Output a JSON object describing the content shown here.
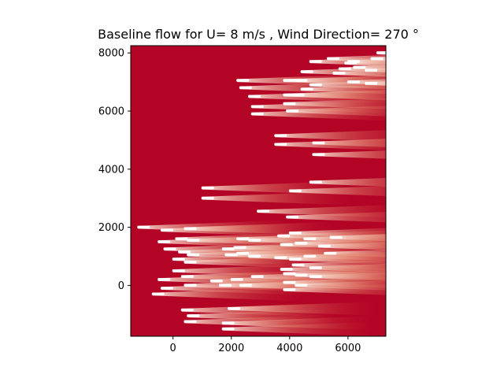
{
  "chart_data": {
    "type": "heatmap",
    "title": "Baseline flow for U= 8 m/s  ,  Wind Direction= 270  °",
    "xlabel": "",
    "ylabel": "",
    "xlim": [
      -1450,
      7300
    ],
    "ylim": [
      -1750,
      8250
    ],
    "x_ticks": [
      0,
      2000,
      4000,
      6000
    ],
    "x_tick_labels": [
      "0",
      "2000",
      "4000",
      "6000"
    ],
    "y_ticks": [
      0,
      2000,
      4000,
      6000,
      8000
    ],
    "y_tick_labels": [
      "0",
      "2000",
      "4000",
      "6000",
      "8000"
    ],
    "background_color": "#b40426",
    "wake_color": "#f4d8d0",
    "turbine_color": "#ffffff",
    "grid": false,
    "legend": "none",
    "wind_from_deg": 270,
    "turbines": [
      [
        -1200,
        2000
      ],
      [
        -400,
        1900
      ],
      [
        400,
        1950
      ],
      [
        -500,
        1500
      ],
      [
        100,
        1600
      ],
      [
        500,
        1550
      ],
      [
        -300,
        1250
      ],
      [
        200,
        1150
      ],
      [
        500,
        1050
      ],
      [
        1700,
        1250
      ],
      [
        2100,
        1300
      ],
      [
        0,
        900
      ],
      [
        400,
        800
      ],
      [
        1800,
        1050
      ],
      [
        2200,
        1100
      ],
      [
        2600,
        1000
      ],
      [
        0,
        500
      ],
      [
        300,
        300
      ],
      [
        1300,
        150
      ],
      [
        2000,
        200
      ],
      [
        2700,
        300
      ],
      [
        -500,
        200
      ],
      [
        -400,
        -100
      ],
      [
        400,
        0
      ],
      [
        1600,
        0
      ],
      [
        2300,
        0
      ],
      [
        -700,
        -300
      ],
      [
        300,
        -850
      ],
      [
        500,
        -1050
      ],
      [
        1900,
        -800
      ],
      [
        400,
        -1250
      ],
      [
        1700,
        -1300
      ],
      [
        1700,
        -1500
      ],
      [
        2200,
        1600
      ],
      [
        2600,
        1550
      ],
      [
        3600,
        1700
      ],
      [
        4000,
        1800
      ],
      [
        4500,
        1600
      ],
      [
        5400,
        1650
      ],
      [
        3700,
        1400
      ],
      [
        4200,
        1450
      ],
      [
        5000,
        1350
      ],
      [
        5200,
        1100
      ],
      [
        4500,
        1000
      ],
      [
        3500,
        950
      ],
      [
        4000,
        900
      ],
      [
        4100,
        700
      ],
      [
        4700,
        600
      ],
      [
        3700,
        550
      ],
      [
        3800,
        400
      ],
      [
        4200,
        350
      ],
      [
        4700,
        300
      ],
      [
        3800,
        100
      ],
      [
        4200,
        0
      ],
      [
        3800,
        -150
      ],
      [
        1000,
        3350
      ],
      [
        1000,
        3000
      ],
      [
        2900,
        2550
      ],
      [
        3900,
        2350
      ],
      [
        4000,
        3250
      ],
      [
        4700,
        3550
      ],
      [
        4800,
        4500
      ],
      [
        4800,
        4900
      ],
      [
        3500,
        5150
      ],
      [
        3500,
        4850
      ],
      [
        2200,
        7050
      ],
      [
        2300,
        6800
      ],
      [
        2600,
        6500
      ],
      [
        2700,
        6150
      ],
      [
        2700,
        5900
      ],
      [
        3800,
        6550
      ],
      [
        4100,
        6550
      ],
      [
        3800,
        6250
      ],
      [
        3900,
        6000
      ],
      [
        3800,
        7050
      ],
      [
        4200,
        7050
      ],
      [
        4400,
        6750
      ],
      [
        4700,
        6900
      ],
      [
        4400,
        7350
      ],
      [
        4700,
        7700
      ],
      [
        5300,
        7800
      ],
      [
        5700,
        7450
      ],
      [
        5900,
        7650
      ],
      [
        6000,
        7000
      ],
      [
        6000,
        7700
      ],
      [
        6600,
        7400
      ],
      [
        6800,
        7800
      ],
      [
        7000,
        8000
      ],
      [
        5500,
        7300
      ],
      [
        6200,
        7500
      ],
      [
        6600,
        6950
      ]
    ]
  }
}
